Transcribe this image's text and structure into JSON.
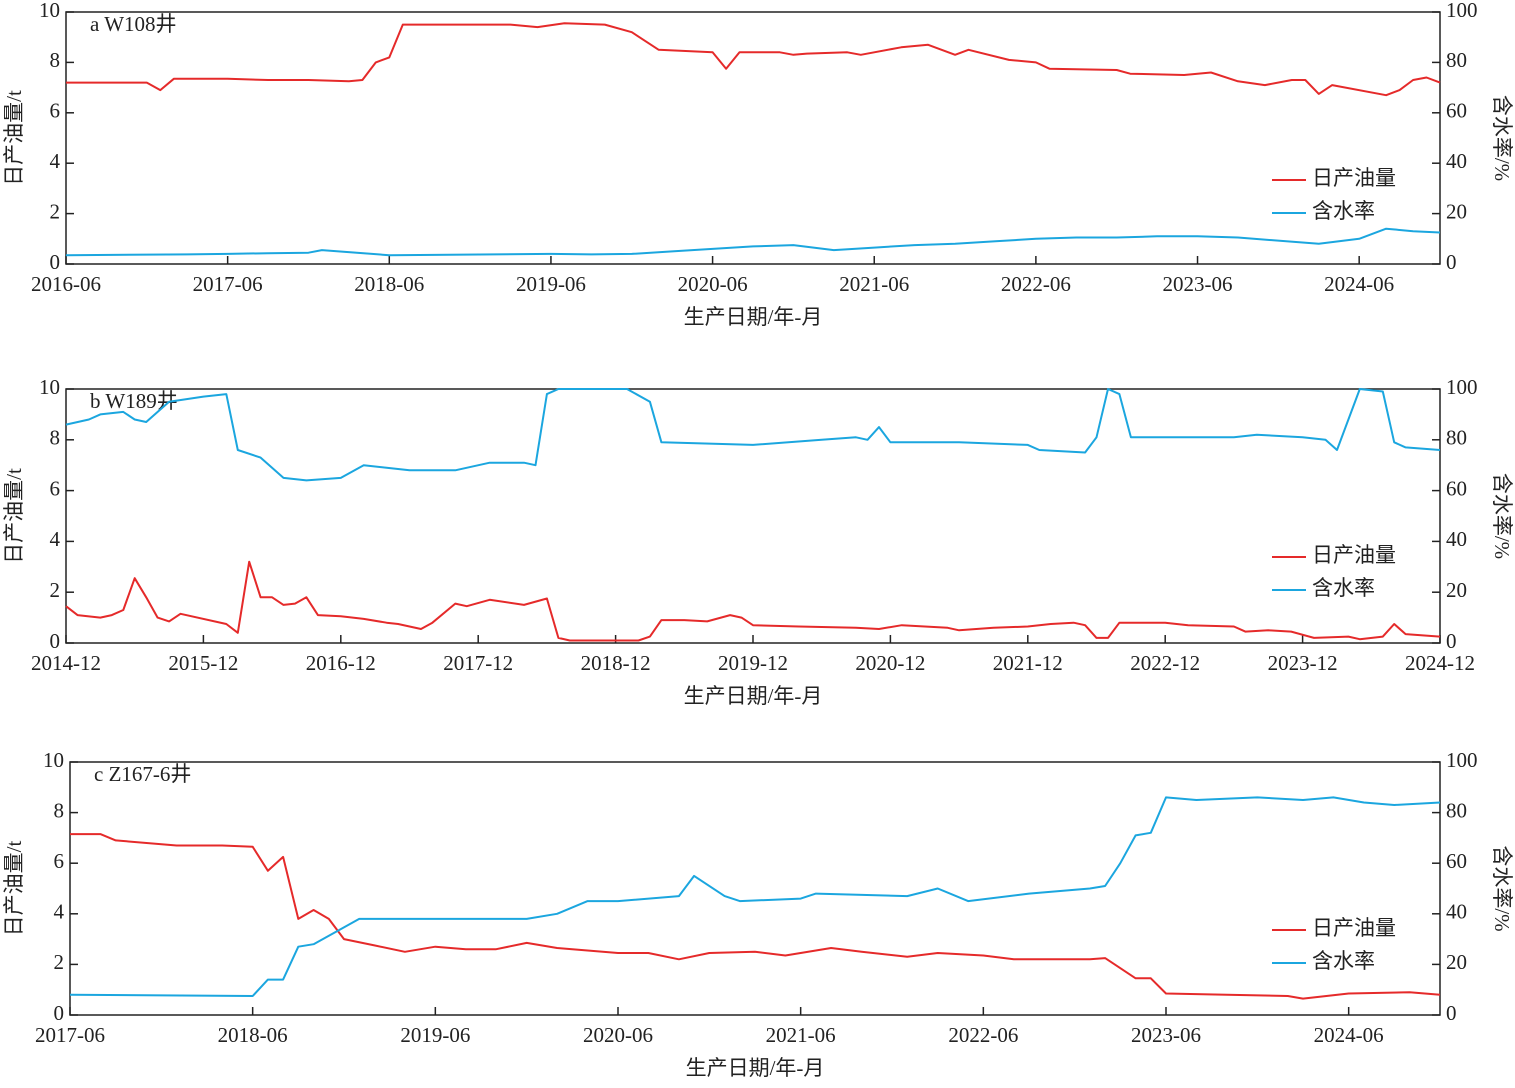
{
  "chart_data": [
    {
      "type": "line",
      "title": "a W108井",
      "x_label": "生产日期/年-月",
      "y_label": "日产油量/t",
      "y2_label": "含水率/%",
      "xlim": [
        "2016-06",
        "2024-12"
      ],
      "xticks": [
        "2016-06",
        "2017-06",
        "2018-06",
        "2019-06",
        "2020-06",
        "2021-06",
        "2022-06",
        "2023-06",
        "2024-06"
      ],
      "ylim": [
        0,
        10
      ],
      "yticks": [
        0,
        2,
        4,
        6,
        8,
        10
      ],
      "y2lim": [
        0,
        100
      ],
      "y2ticks": [
        0,
        20,
        40,
        60,
        80,
        100
      ],
      "series": [
        {
          "name": "日产油量",
          "color": "#e52a2a",
          "x": [
            "2016-06",
            "2016-09",
            "2016-12",
            "2017-01",
            "2017-02",
            "2017-06",
            "2017-09",
            "2017-12",
            "2018-03",
            "2018-04",
            "2018-05",
            "2018-06",
            "2018-07",
            "2018-12",
            "2019-03",
            "2019-05",
            "2019-07",
            "2019-10",
            "2019-12",
            "2020-02",
            "2020-06",
            "2020-07",
            "2020-08",
            "2020-11",
            "2020-12",
            "2021-01",
            "2021-04",
            "2021-05",
            "2021-08",
            "2021-10",
            "2021-12",
            "2022-01",
            "2022-04",
            "2022-06",
            "2022-07",
            "2022-12",
            "2023-01",
            "2023-05",
            "2023-07",
            "2023-09",
            "2023-11",
            "2024-01",
            "2024-02",
            "2024-03",
            "2024-04",
            "2024-08",
            "2024-09",
            "2024-10",
            "2024-11",
            "2024-12"
          ],
          "values": [
            7.2,
            7.2,
            7.2,
            6.9,
            7.35,
            7.35,
            7.3,
            7.3,
            7.25,
            7.3,
            8.0,
            8.2,
            9.5,
            9.5,
            9.5,
            9.4,
            9.55,
            9.5,
            9.2,
            8.5,
            8.4,
            7.75,
            8.4,
            8.4,
            8.3,
            8.35,
            8.4,
            8.3,
            8.6,
            8.7,
            8.3,
            8.5,
            8.1,
            8.0,
            7.75,
            7.7,
            7.55,
            7.5,
            7.6,
            7.25,
            7.1,
            7.3,
            7.3,
            6.75,
            7.1,
            6.7,
            6.9,
            7.3,
            7.4,
            7.2
          ]
        },
        {
          "name": "含水率",
          "color": "#1ba6df",
          "axis": "y2",
          "x": [
            "2016-06",
            "2017-03",
            "2017-06",
            "2017-09",
            "2017-12",
            "2018-01",
            "2018-06",
            "2019-06",
            "2019-09",
            "2019-12",
            "2020-03",
            "2020-06",
            "2020-09",
            "2020-12",
            "2021-03",
            "2021-06",
            "2021-09",
            "2021-12",
            "2022-03",
            "2022-06",
            "2022-09",
            "2022-12",
            "2023-03",
            "2023-06",
            "2023-09",
            "2024-03",
            "2024-06",
            "2024-08",
            "2024-10",
            "2024-12"
          ],
          "values": [
            3.5,
            3.8,
            4.0,
            4.3,
            4.5,
            5.5,
            3.5,
            4.0,
            3.8,
            4.0,
            5.0,
            6.0,
            7.0,
            7.5,
            5.5,
            6.5,
            7.5,
            8.0,
            9.0,
            10.0,
            10.5,
            10.5,
            11.0,
            11.0,
            10.5,
            8.0,
            10.0,
            14.0,
            13.0,
            12.5
          ]
        }
      ]
    },
    {
      "type": "line",
      "title": "b W189井",
      "x_label": "生产日期/年-月",
      "y_label": "日产油量/t",
      "y2_label": "含水率/%",
      "xlim": [
        "2014-12",
        "2024-12"
      ],
      "xticks": [
        "2014-12",
        "2015-12",
        "2016-12",
        "2017-12",
        "2018-12",
        "2019-12",
        "2020-12",
        "2021-12",
        "2022-12",
        "2023-12",
        "2024-12"
      ],
      "ylim": [
        0,
        10
      ],
      "yticks": [
        0,
        2,
        4,
        6,
        8,
        10
      ],
      "y2lim": [
        0,
        100
      ],
      "y2ticks": [
        0,
        20,
        40,
        60,
        80,
        100
      ],
      "series": [
        {
          "name": "日产油量",
          "color": "#e52a2a",
          "x": [
            "2014-12",
            "2015-01",
            "2015-03",
            "2015-04",
            "2015-05",
            "2015-06",
            "2015-07",
            "2015-08",
            "2015-09",
            "2015-10",
            "2016-02",
            "2016-03",
            "2016-04",
            "2016-05",
            "2016-06",
            "2016-07",
            "2016-08",
            "2016-09",
            "2016-10",
            "2016-12",
            "2017-02",
            "2017-04",
            "2017-05",
            "2017-07",
            "2017-08",
            "2017-10",
            "2017-11",
            "2018-01",
            "2018-04",
            "2018-06",
            "2018-07",
            "2018-08",
            "2019-02",
            "2019-03",
            "2019-04",
            "2019-06",
            "2019-08",
            "2019-10",
            "2019-11",
            "2019-12",
            "2020-04",
            "2020-09",
            "2020-11",
            "2021-01",
            "2021-05",
            "2021-06",
            "2021-09",
            "2021-12",
            "2022-02",
            "2022-04",
            "2022-05",
            "2022-06",
            "2022-07",
            "2022-08",
            "2022-12",
            "2023-02",
            "2023-06",
            "2023-07",
            "2023-09",
            "2023-11",
            "2024-01",
            "2024-04",
            "2024-05",
            "2024-07",
            "2024-08",
            "2024-09",
            "2024-12"
          ],
          "values": [
            1.45,
            1.1,
            1.0,
            1.1,
            1.3,
            2.55,
            1.8,
            1.0,
            0.85,
            1.15,
            0.75,
            0.4,
            3.2,
            1.8,
            1.8,
            1.5,
            1.55,
            1.8,
            1.1,
            1.05,
            0.95,
            0.8,
            0.75,
            0.55,
            0.8,
            1.55,
            1.45,
            1.7,
            1.5,
            1.75,
            0.2,
            0.1,
            0.1,
            0.25,
            0.9,
            0.9,
            0.85,
            1.1,
            1.0,
            0.7,
            0.65,
            0.6,
            0.55,
            0.7,
            0.6,
            0.5,
            0.6,
            0.65,
            0.75,
            0.8,
            0.7,
            0.2,
            0.2,
            0.8,
            0.8,
            0.7,
            0.65,
            0.45,
            0.5,
            0.45,
            0.2,
            0.25,
            0.15,
            0.25,
            0.75,
            0.35,
            0.25
          ]
        },
        {
          "name": "含水率",
          "color": "#1ba6df",
          "axis": "y2",
          "x": [
            "2014-12",
            "2015-02",
            "2015-03",
            "2015-05",
            "2015-06",
            "2015-07",
            "2015-09",
            "2015-12",
            "2016-02",
            "2016-03",
            "2016-05",
            "2016-07",
            "2016-09",
            "2016-12",
            "2017-02",
            "2017-04",
            "2017-06",
            "2017-10",
            "2018-01",
            "2018-04",
            "2018-05",
            "2018-06",
            "2018-07",
            "2019-01",
            "2019-03",
            "2019-04",
            "2019-12",
            "2020-06",
            "2020-09",
            "2020-10",
            "2020-11",
            "2020-12",
            "2021-06",
            "2021-12",
            "2022-01",
            "2022-05",
            "2022-06",
            "2022-07",
            "2022-08",
            "2022-09",
            "2022-12",
            "2023-06",
            "2023-08",
            "2023-12",
            "2024-02",
            "2024-03",
            "2024-05",
            "2024-07",
            "2024-08",
            "2024-09",
            "2024-12"
          ],
          "values": [
            86,
            88,
            90,
            91,
            88,
            87,
            95,
            97,
            98,
            76,
            73,
            65,
            64,
            65,
            70,
            69,
            68,
            68,
            71,
            71,
            70,
            98,
            100,
            100,
            95,
            79,
            78,
            80,
            81,
            80,
            85,
            79,
            79,
            78,
            76,
            75,
            81,
            100,
            98,
            81,
            81,
            81,
            82,
            81,
            80,
            76,
            100,
            99,
            79,
            77,
            76
          ]
        }
      ]
    },
    {
      "type": "line",
      "title": "c Z167-6井",
      "x_label": "生产日期/年-月",
      "y_label": "日产油量/t",
      "y2_label": "含水率/%",
      "xlim": [
        "2017-06",
        "2024-12"
      ],
      "xticks": [
        "2017-06",
        "2018-06",
        "2019-06",
        "2020-06",
        "2021-06",
        "2022-06",
        "2023-06",
        "2024-06"
      ],
      "ylim": [
        0,
        10
      ],
      "yticks": [
        0,
        2,
        4,
        6,
        8,
        10
      ],
      "y2lim": [
        0,
        100
      ],
      "y2ticks": [
        0,
        20,
        40,
        60,
        80,
        100
      ],
      "series": [
        {
          "name": "日产油量",
          "color": "#e52a2a",
          "x": [
            "2017-06",
            "2017-08",
            "2017-09",
            "2018-01",
            "2018-04",
            "2018-06",
            "2018-07",
            "2018-08",
            "2018-09",
            "2018-10",
            "2018-11",
            "2018-12",
            "2019-02",
            "2019-04",
            "2019-06",
            "2019-08",
            "2019-10",
            "2019-12",
            "2020-02",
            "2020-06",
            "2020-08",
            "2020-10",
            "2020-12",
            "2021-03",
            "2021-05",
            "2021-08",
            "2021-10",
            "2022-01",
            "2022-03",
            "2022-06",
            "2022-08",
            "2023-01",
            "2023-02",
            "2023-04",
            "2023-05",
            "2023-06",
            "2023-10",
            "2024-02",
            "2024-03",
            "2024-06",
            "2024-10",
            "2024-12"
          ],
          "values": [
            7.15,
            7.15,
            6.9,
            6.7,
            6.7,
            6.65,
            5.7,
            6.25,
            3.8,
            4.15,
            3.8,
            3.0,
            2.75,
            2.5,
            2.7,
            2.6,
            2.6,
            2.85,
            2.65,
            2.45,
            2.45,
            2.2,
            2.45,
            2.5,
            2.35,
            2.65,
            2.5,
            2.3,
            2.45,
            2.35,
            2.2,
            2.2,
            2.25,
            1.45,
            1.45,
            0.85,
            0.8,
            0.75,
            0.65,
            0.85,
            0.9,
            0.8
          ]
        },
        {
          "name": "含水率",
          "color": "#1ba6df",
          "axis": "y2",
          "x": [
            "2017-06",
            "2018-06",
            "2018-07",
            "2018-08",
            "2018-09",
            "2018-10",
            "2019-01",
            "2019-07",
            "2019-12",
            "2020-02",
            "2020-04",
            "2020-06",
            "2020-10",
            "2020-11",
            "2021-01",
            "2021-02",
            "2021-06",
            "2021-07",
            "2022-01",
            "2022-03",
            "2022-05",
            "2022-09",
            "2023-01",
            "2023-02",
            "2023-03",
            "2023-04",
            "2023-05",
            "2023-06",
            "2023-08",
            "2023-12",
            "2024-03",
            "2024-05",
            "2024-07",
            "2024-09",
            "2024-12"
          ],
          "values": [
            8,
            7.5,
            14,
            14,
            27,
            28,
            38,
            38,
            38,
            40,
            45,
            45,
            47,
            55,
            47,
            45,
            46,
            48,
            47,
            50,
            45,
            48,
            50,
            51,
            60,
            71,
            72,
            86,
            85,
            86,
            85,
            86,
            84,
            83,
            84
          ]
        }
      ]
    }
  ]
}
